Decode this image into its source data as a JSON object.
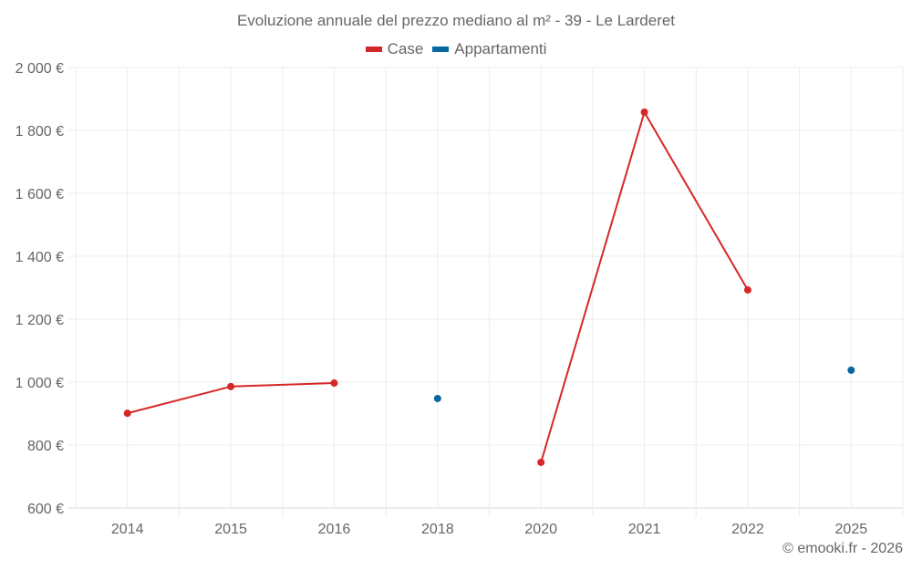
{
  "title": "Evoluzione annuale del prezzo mediano al m² - 39 - Le Larderet",
  "legend": [
    {
      "label": "Case",
      "color": "#d62728"
    },
    {
      "label": "Appartamenti",
      "color": "#07689f"
    }
  ],
  "credits": "© emooki.fr - 2026",
  "chart_data": {
    "type": "line",
    "title": "Evoluzione annuale del prezzo mediano al m² - 39 - Le Larderet",
    "xlabel": "",
    "ylabel": "",
    "categories": [
      "2014",
      "2015",
      "2016",
      "2018",
      "2020",
      "2021",
      "2022",
      "2025"
    ],
    "y_ticks": [
      "600 €",
      "800 €",
      "1 000 €",
      "1 200 €",
      "1 400 €",
      "1 600 €",
      "1 800 €",
      "2 000 €"
    ],
    "y_tick_values": [
      600,
      800,
      1000,
      1200,
      1400,
      1600,
      1800,
      2000
    ],
    "ylim": [
      600,
      2000
    ],
    "grid": true,
    "legend_position": "top",
    "series": [
      {
        "name": "Case",
        "color": "#d62728",
        "values": [
          901,
          986,
          997,
          null,
          745,
          1858,
          1293,
          null
        ]
      },
      {
        "name": "Appartamenti",
        "color": "#07689f",
        "values": [
          null,
          null,
          null,
          948,
          null,
          null,
          null,
          1038
        ]
      }
    ]
  }
}
